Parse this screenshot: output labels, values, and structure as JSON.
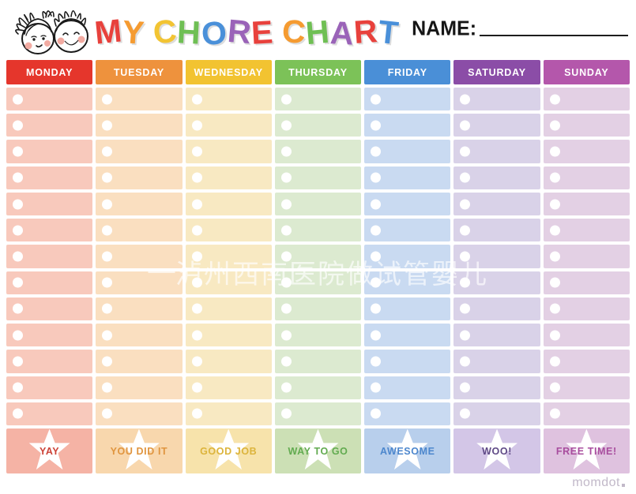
{
  "header": {
    "kids_illustration": "girl-and-boy-cartoon-faces",
    "title_letters": [
      {
        "ch": "M",
        "color": "#e8413c"
      },
      {
        "ch": "Y",
        "color": "#f59b31"
      },
      {
        "ch": " "
      },
      {
        "ch": "C",
        "color": "#f2c433"
      },
      {
        "ch": "H",
        "color": "#6fbf54"
      },
      {
        "ch": "O",
        "color": "#4a90d9"
      },
      {
        "ch": "R",
        "color": "#9a63b8"
      },
      {
        "ch": "E",
        "color": "#e8413c"
      },
      {
        "ch": " "
      },
      {
        "ch": "C",
        "color": "#f59b31"
      },
      {
        "ch": "H",
        "color": "#6fbf54"
      },
      {
        "ch": "A",
        "color": "#9a63b8"
      },
      {
        "ch": "R",
        "color": "#e8413c"
      },
      {
        "ch": "T",
        "color": "#4a90d9"
      }
    ],
    "name_label": "NAME:",
    "name_value": ""
  },
  "table": {
    "rows_per_day": 13,
    "days": [
      {
        "label": "MONDAY",
        "header_color": "#e5362c",
        "row_color": "#f8c9bc",
        "footer_color": "#f5b3a5",
        "footer_text": "YAY",
        "footer_text_color": "#cc4338"
      },
      {
        "label": "TUESDAY",
        "header_color": "#ee923d",
        "row_color": "#fadfc0",
        "footer_color": "#f8d7ad",
        "footer_text": "YOU DID IT",
        "footer_text_color": "#e0953f"
      },
      {
        "label": "WEDNESDAY",
        "header_color": "#f2c331",
        "row_color": "#f8e9c2",
        "footer_color": "#f7e3ab",
        "footer_text": "GOOD JOB",
        "footer_text_color": "#dcb43c"
      },
      {
        "label": "THURSDAY",
        "header_color": "#7cc258",
        "row_color": "#dcead0",
        "footer_color": "#cce0b5",
        "footer_text": "WAY TO GO",
        "footer_text_color": "#62ab50"
      },
      {
        "label": "FRIDAY",
        "header_color": "#4a8fd7",
        "row_color": "#c9daf1",
        "footer_color": "#b8cfec",
        "footer_text": "AWESOME",
        "footer_text_color": "#4d87cd"
      },
      {
        "label": "SATURDAY",
        "header_color": "#8b4da7",
        "row_color": "#d9d2e8",
        "footer_color": "#d3c6e7",
        "footer_text": "WOO!",
        "footer_text_color": "#5f4a86"
      },
      {
        "label": "SUNDAY",
        "header_color": "#b457ab",
        "row_color": "#e3d0e4",
        "footer_color": "#dfc2df",
        "footer_text": "FREE TIME!",
        "footer_text_color": "#a84d9e"
      }
    ]
  },
  "watermark": {
    "text": "泸州西南医院做试管婴儿"
  },
  "footer_brand": {
    "text": "momdot"
  }
}
